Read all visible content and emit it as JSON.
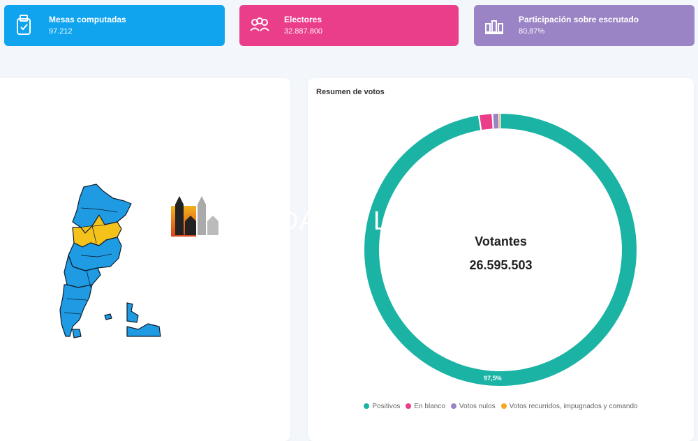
{
  "stats": {
    "mesas": {
      "label": "Mesas computadas",
      "value": "97.212",
      "icon": "ballot-box-icon",
      "color": "#10a3ee"
    },
    "electores": {
      "label": "Electores",
      "value": "32.887.800",
      "icon": "people-group-icon",
      "color": "#ea3d8a"
    },
    "participacion": {
      "label": "Participación sobre escrutado",
      "value": "80,87%",
      "icon": "vote-hands-icon",
      "color": "#9b84c5"
    }
  },
  "votes": {
    "title": "Resumen de votos",
    "center_title": "Votantes",
    "center_value": "26.595.503",
    "slice_label": "97,5%"
  },
  "chart_data": {
    "type": "pie",
    "categories": [
      "Positivos",
      "En blanco",
      "Votos nulos",
      "Votos recurridos, impugnados y comando"
    ],
    "values": [
      97.5,
      1.6,
      0.8,
      0.1
    ],
    "colors": [
      "#1ab3a4",
      "#ea3d8a",
      "#9b84c5",
      "#f5a623"
    ]
  },
  "map": {
    "colors": {
      "blue": "#1f9be3",
      "yellow": "#f4c21b"
    }
  },
  "watermark": {
    "text": "DA ON L"
  }
}
